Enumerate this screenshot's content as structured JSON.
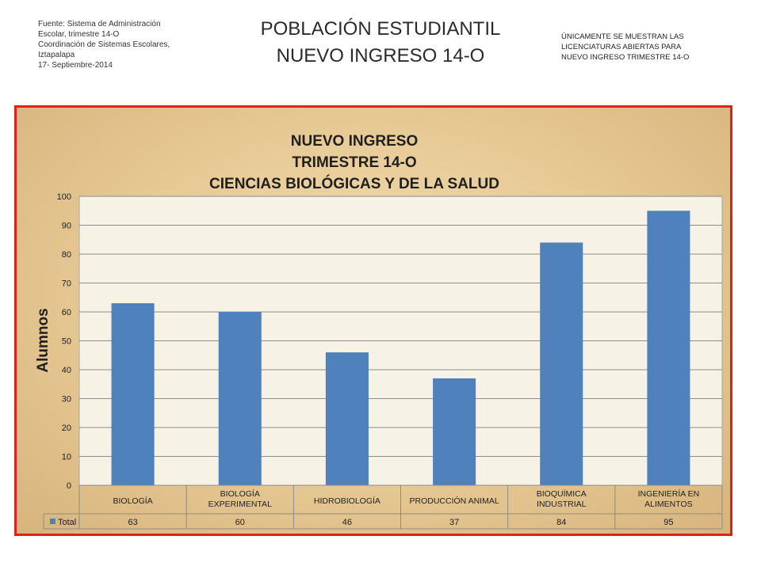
{
  "source": {
    "lines": [
      "Fuente: Sistema de Administración",
      "Escolar, trimestre 14-O",
      "Coordinación de Sistemas Escolares,",
      "Iztapalapa",
      "17- Septiembre-2014"
    ]
  },
  "page_title": [
    "POBLACIÓN ESTUDIANTIL",
    "NUEVO INGRESO 14-O"
  ],
  "note": [
    "ÚNICAMENTE SE MUESTRAN LAS",
    "LICENCIATURAS ABIERTAS PARA",
    "NUEVO INGRESO TRIMESTRE 14-O"
  ],
  "colors": {
    "bar": "#4f81bd",
    "frame": "#e0201c",
    "plot_bg": "#f7f2e6"
  },
  "chart_data": {
    "type": "bar",
    "title": [
      "NUEVO INGRESO",
      "TRIMESTRE 14-O",
      "CIENCIAS BIOLÓGICAS Y DE LA SALUD"
    ],
    "ylabel": "Alumnos",
    "ylim": [
      0,
      100
    ],
    "yticks": [
      0,
      10,
      20,
      30,
      40,
      50,
      60,
      70,
      80,
      90,
      100
    ],
    "grid": true,
    "categories": [
      [
        "BIOLOGÍA"
      ],
      [
        "BIOLOGÍA",
        "EXPERIMENTAL"
      ],
      [
        "HIDROBIOLOGÍA"
      ],
      [
        "PRODUCCIÓN ANIMAL"
      ],
      [
        "BIOQUÍMICA",
        "INDUSTRIAL"
      ],
      [
        "INGENIERÍA EN",
        "ALIMENTOS"
      ]
    ],
    "series": [
      {
        "name": "Total",
        "values": [
          63,
          60,
          46,
          37,
          84,
          95
        ]
      }
    ],
    "data_table": true
  }
}
